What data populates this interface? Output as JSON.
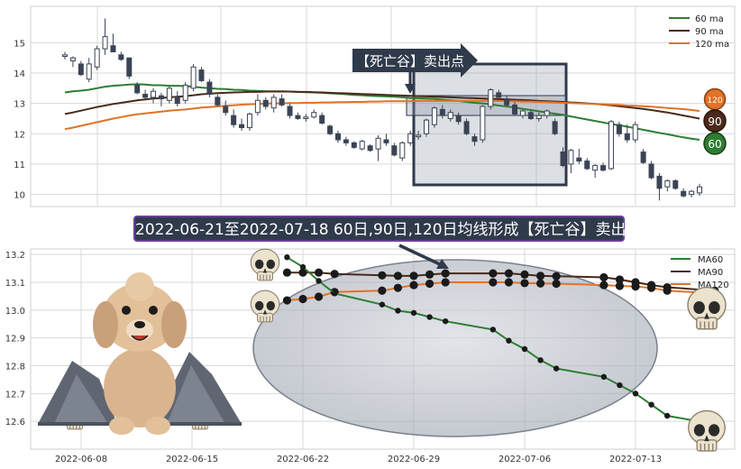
{
  "colors": {
    "ma60": "#2e7d32",
    "ma90": "#4a2a1a",
    "ma120": "#e07328",
    "candle_dark": "#3b4454",
    "panel_bg": "#ffffff",
    "grid": "#d9d9d9",
    "callout": "#2f3a4b",
    "banner_border": "#6a3f9a"
  },
  "top_panel": {
    "y_ticks": [
      "10",
      "11",
      "12",
      "13",
      "14",
      "15"
    ],
    "callout_label": "【死亡谷】卖出点",
    "legend": [
      {
        "label": "60 ma",
        "color_key": "ma60"
      },
      {
        "label": "90 ma",
        "color_key": "ma90"
      },
      {
        "label": "120 ma",
        "color_key": "ma120"
      }
    ],
    "end_badges": [
      {
        "label": "120",
        "color_key": "ma120"
      },
      {
        "label": "90",
        "color_key": "ma90"
      },
      {
        "label": "60",
        "color_key": "ma60"
      }
    ]
  },
  "banner_text": "2022-06-21至2022-07-18 60日,90日,120日均线形成【死亡谷】卖出点",
  "bottom_panel": {
    "y_ticks": [
      "12.6",
      "12.7",
      "12.8",
      "12.9",
      "13.0",
      "13.1",
      "13.2"
    ],
    "x_ticks": [
      "2022-06-08",
      "2022-06-15",
      "2022-06-22",
      "2022-06-29",
      "2022-07-06",
      "2022-07-13"
    ],
    "legend": [
      {
        "label": "MA60",
        "color_key": "ma60"
      },
      {
        "label": "MA90",
        "color_key": "ma90"
      },
      {
        "label": "MA120",
        "color_key": "ma120"
      }
    ]
  },
  "chart_data": [
    {
      "type": "candlestick",
      "title": "",
      "ylim": [
        9.6,
        16.2
      ],
      "ohlc": [
        [
          14.55,
          14.7,
          14.45,
          14.6
        ],
        [
          14.4,
          14.55,
          14.2,
          14.5
        ],
        [
          14.3,
          14.4,
          13.9,
          13.95
        ],
        [
          13.8,
          14.5,
          13.7,
          14.3
        ],
        [
          14.2,
          14.9,
          14.1,
          14.8
        ],
        [
          14.8,
          15.8,
          14.6,
          15.2
        ],
        [
          14.9,
          15.3,
          14.7,
          14.7
        ],
        [
          14.6,
          14.7,
          14.4,
          14.45
        ],
        [
          14.5,
          14.5,
          13.8,
          13.9
        ],
        [
          13.6,
          13.7,
          13.3,
          13.35
        ],
        [
          13.3,
          13.45,
          13.15,
          13.2
        ],
        [
          13.2,
          13.5,
          13.0,
          13.4
        ],
        [
          13.25,
          13.35,
          12.9,
          13.15
        ],
        [
          13.1,
          13.6,
          13.0,
          13.5
        ],
        [
          13.2,
          13.4,
          12.9,
          13.0
        ],
        [
          13.1,
          13.7,
          13.0,
          13.6
        ],
        [
          13.5,
          14.3,
          13.4,
          14.2
        ],
        [
          14.1,
          14.2,
          13.7,
          13.75
        ],
        [
          13.7,
          13.8,
          13.2,
          13.3
        ],
        [
          13.2,
          13.3,
          12.9,
          12.95
        ],
        [
          12.9,
          13.1,
          12.6,
          12.7
        ],
        [
          12.6,
          12.8,
          12.2,
          12.3
        ],
        [
          12.3,
          12.5,
          12.1,
          12.2
        ],
        [
          12.2,
          12.7,
          12.1,
          12.65
        ],
        [
          12.7,
          13.3,
          12.6,
          13.1
        ],
        [
          13.1,
          13.2,
          12.8,
          12.9
        ],
        [
          12.85,
          13.3,
          12.7,
          13.2
        ],
        [
          13.15,
          13.3,
          12.9,
          12.95
        ],
        [
          12.9,
          13.0,
          12.5,
          12.6
        ],
        [
          12.6,
          12.7,
          12.45,
          12.5
        ],
        [
          12.5,
          12.65,
          12.4,
          12.55
        ],
        [
          12.55,
          12.8,
          12.5,
          12.7
        ],
        [
          12.6,
          12.7,
          12.3,
          12.35
        ],
        [
          12.25,
          12.3,
          11.95,
          12.0
        ],
        [
          12.0,
          12.1,
          11.7,
          11.8
        ],
        [
          11.8,
          11.9,
          11.6,
          11.7
        ],
        [
          11.7,
          11.75,
          11.5,
          11.55
        ],
        [
          11.5,
          11.8,
          11.45,
          11.75
        ],
        [
          11.6,
          11.65,
          11.4,
          11.45
        ],
        [
          11.5,
          11.95,
          11.1,
          11.85
        ],
        [
          11.8,
          12.0,
          11.6,
          11.7
        ],
        [
          11.6,
          11.7,
          11.25,
          11.3
        ],
        [
          11.2,
          11.75,
          11.1,
          11.7
        ],
        [
          11.7,
          12.1,
          11.6,
          12.0
        ],
        [
          11.9,
          12.1,
          11.8,
          11.95
        ],
        [
          12.0,
          12.5,
          11.9,
          12.45
        ],
        [
          12.3,
          12.9,
          12.2,
          12.85
        ],
        [
          12.8,
          12.95,
          12.5,
          12.6
        ],
        [
          12.5,
          12.8,
          12.4,
          12.7
        ],
        [
          12.6,
          12.7,
          12.3,
          12.4
        ],
        [
          12.4,
          12.5,
          11.95,
          12.0
        ],
        [
          11.9,
          12.0,
          11.6,
          11.75
        ],
        [
          11.8,
          12.95,
          11.7,
          12.9
        ],
        [
          12.9,
          13.5,
          12.8,
          13.45
        ],
        [
          13.35,
          13.45,
          13.1,
          13.2
        ],
        [
          13.15,
          13.25,
          12.9,
          12.95
        ],
        [
          12.95,
          13.05,
          12.6,
          12.65
        ],
        [
          12.6,
          12.8,
          12.5,
          12.75
        ],
        [
          12.7,
          12.8,
          12.45,
          12.5
        ],
        [
          12.5,
          12.7,
          12.4,
          12.6
        ],
        [
          12.6,
          12.8,
          12.5,
          12.75
        ],
        [
          12.4,
          12.5,
          11.95,
          12.0
        ],
        [
          11.4,
          11.55,
          10.9,
          10.95
        ],
        [
          11.0,
          11.5,
          10.7,
          11.45
        ],
        [
          11.2,
          11.5,
          11.0,
          11.1
        ],
        [
          11.1,
          11.2,
          10.8,
          10.85
        ],
        [
          10.8,
          11.0,
          10.55,
          10.95
        ],
        [
          10.95,
          11.05,
          10.75,
          10.8
        ],
        [
          10.85,
          12.45,
          10.8,
          12.4
        ],
        [
          12.3,
          12.4,
          11.9,
          12.0
        ],
        [
          12.0,
          12.3,
          11.7,
          11.8
        ],
        [
          11.8,
          12.4,
          11.7,
          12.3
        ],
        [
          11.4,
          11.5,
          11.0,
          11.05
        ],
        [
          11.0,
          11.1,
          10.5,
          10.55
        ],
        [
          10.6,
          10.7,
          9.8,
          10.2
        ],
        [
          10.25,
          10.5,
          10.1,
          10.45
        ],
        [
          10.45,
          10.5,
          10.15,
          10.2
        ],
        [
          10.1,
          10.2,
          9.9,
          9.95
        ],
        [
          10.0,
          10.15,
          9.9,
          10.1
        ],
        [
          10.05,
          10.35,
          9.95,
          10.25
        ]
      ],
      "series": [
        {
          "name": "60 ma",
          "values": [
            13.36,
            13.4,
            13.42,
            13.45,
            13.5,
            13.55,
            13.58,
            13.6,
            13.62,
            13.63,
            13.62,
            13.6,
            13.6,
            13.58,
            13.58,
            13.57,
            13.55,
            13.52,
            13.5,
            13.48,
            13.47,
            13.45,
            13.44,
            13.42,
            13.41,
            13.4,
            13.4,
            13.4,
            13.39,
            13.38,
            13.37,
            13.36,
            13.35,
            13.33,
            13.32,
            13.3,
            13.28,
            13.27,
            13.25,
            13.24,
            13.23,
            13.22,
            13.2,
            13.18,
            13.17,
            13.16,
            13.15,
            13.12,
            13.1,
            13.08,
            13.05,
            13.02,
            13.0,
            12.97,
            12.93,
            12.9,
            12.86,
            12.82,
            12.78,
            12.74,
            12.7,
            12.66,
            12.62,
            12.57,
            12.52,
            12.47,
            12.42,
            12.37,
            12.32,
            12.28,
            12.23,
            12.18,
            12.13,
            12.08,
            12.03,
            11.98,
            11.93,
            11.88,
            11.84,
            11.8
          ]
        },
        {
          "name": "90 ma",
          "values": [
            12.65,
            12.7,
            12.76,
            12.82,
            12.88,
            12.93,
            12.98,
            13.02,
            13.06,
            13.1,
            13.13,
            13.16,
            13.18,
            13.2,
            13.22,
            13.24,
            13.27,
            13.3,
            13.32,
            13.34,
            13.35,
            13.36,
            13.37,
            13.38,
            13.38,
            13.39,
            13.39,
            13.39,
            13.39,
            13.38,
            13.38,
            13.37,
            13.36,
            13.35,
            13.34,
            13.33,
            13.32,
            13.31,
            13.3,
            13.29,
            13.28,
            13.27,
            13.26,
            13.25,
            13.24,
            13.23,
            13.22,
            13.21,
            13.2,
            13.19,
            13.18,
            13.17,
            13.16,
            13.15,
            13.14,
            13.13,
            13.12,
            13.11,
            13.1,
            13.08,
            13.07,
            13.06,
            13.05,
            13.03,
            13.02,
            13.0,
            12.98,
            12.96,
            12.94,
            12.91,
            12.88,
            12.85,
            12.82,
            12.78,
            12.74,
            12.7,
            12.65,
            12.6,
            12.55,
            12.5
          ]
        },
        {
          "name": "120 ma",
          "values": [
            12.15,
            12.2,
            12.26,
            12.32,
            12.38,
            12.44,
            12.5,
            12.55,
            12.6,
            12.64,
            12.67,
            12.7,
            12.73,
            12.76,
            12.78,
            12.8,
            12.83,
            12.86,
            12.88,
            12.9,
            12.92,
            12.94,
            12.96,
            12.97,
            12.98,
            12.99,
            13.0,
            13.0,
            13.01,
            13.01,
            13.02,
            13.02,
            13.03,
            13.03,
            13.04,
            13.04,
            13.05,
            13.05,
            13.06,
            13.06,
            13.07,
            13.07,
            13.07,
            13.07,
            13.08,
            13.08,
            13.08,
            13.08,
            13.08,
            13.08,
            13.08,
            13.08,
            13.08,
            13.08,
            13.08,
            13.07,
            13.07,
            13.06,
            13.06,
            13.05,
            13.04,
            13.03,
            13.02,
            13.01,
            13.0,
            12.99,
            12.98,
            12.97,
            12.96,
            12.95,
            12.93,
            12.92,
            12.91,
            12.89,
            12.87,
            12.85,
            12.83,
            12.81,
            12.78,
            12.75
          ]
        }
      ]
    },
    {
      "type": "line",
      "title": "",
      "x": [
        "2022-06-21",
        "2022-06-22",
        "2022-06-23",
        "2022-06-24",
        "2022-06-27",
        "2022-06-28",
        "2022-06-29",
        "2022-06-30",
        "2022-07-01",
        "2022-07-04",
        "2022-07-05",
        "2022-07-06",
        "2022-07-07",
        "2022-07-08",
        "2022-07-11",
        "2022-07-12",
        "2022-07-13",
        "2022-07-14",
        "2022-07-15",
        "2022-07-18"
      ],
      "ylim": [
        12.5,
        13.22
      ],
      "series": [
        {
          "name": "MA60",
          "values": [
            13.19,
            13.155,
            13.105,
            13.06,
            13.02,
            12.998,
            12.99,
            12.975,
            12.96,
            12.93,
            12.89,
            12.86,
            12.82,
            12.79,
            12.76,
            12.73,
            12.7,
            12.66,
            12.62,
            12.59
          ]
        },
        {
          "name": "MA90",
          "values": [
            13.135,
            13.135,
            13.135,
            13.13,
            13.125,
            13.123,
            13.123,
            13.128,
            13.132,
            13.132,
            13.132,
            13.128,
            13.123,
            13.122,
            13.118,
            13.11,
            13.1,
            13.09,
            13.082,
            13.07
          ]
        },
        {
          "name": "MA120",
          "values": [
            13.035,
            13.04,
            13.048,
            13.065,
            13.07,
            13.08,
            13.09,
            13.095,
            13.1,
            13.1,
            13.1,
            13.097,
            13.096,
            13.095,
            13.09,
            13.087,
            13.085,
            13.08,
            13.07,
            13.06
          ]
        }
      ]
    }
  ]
}
